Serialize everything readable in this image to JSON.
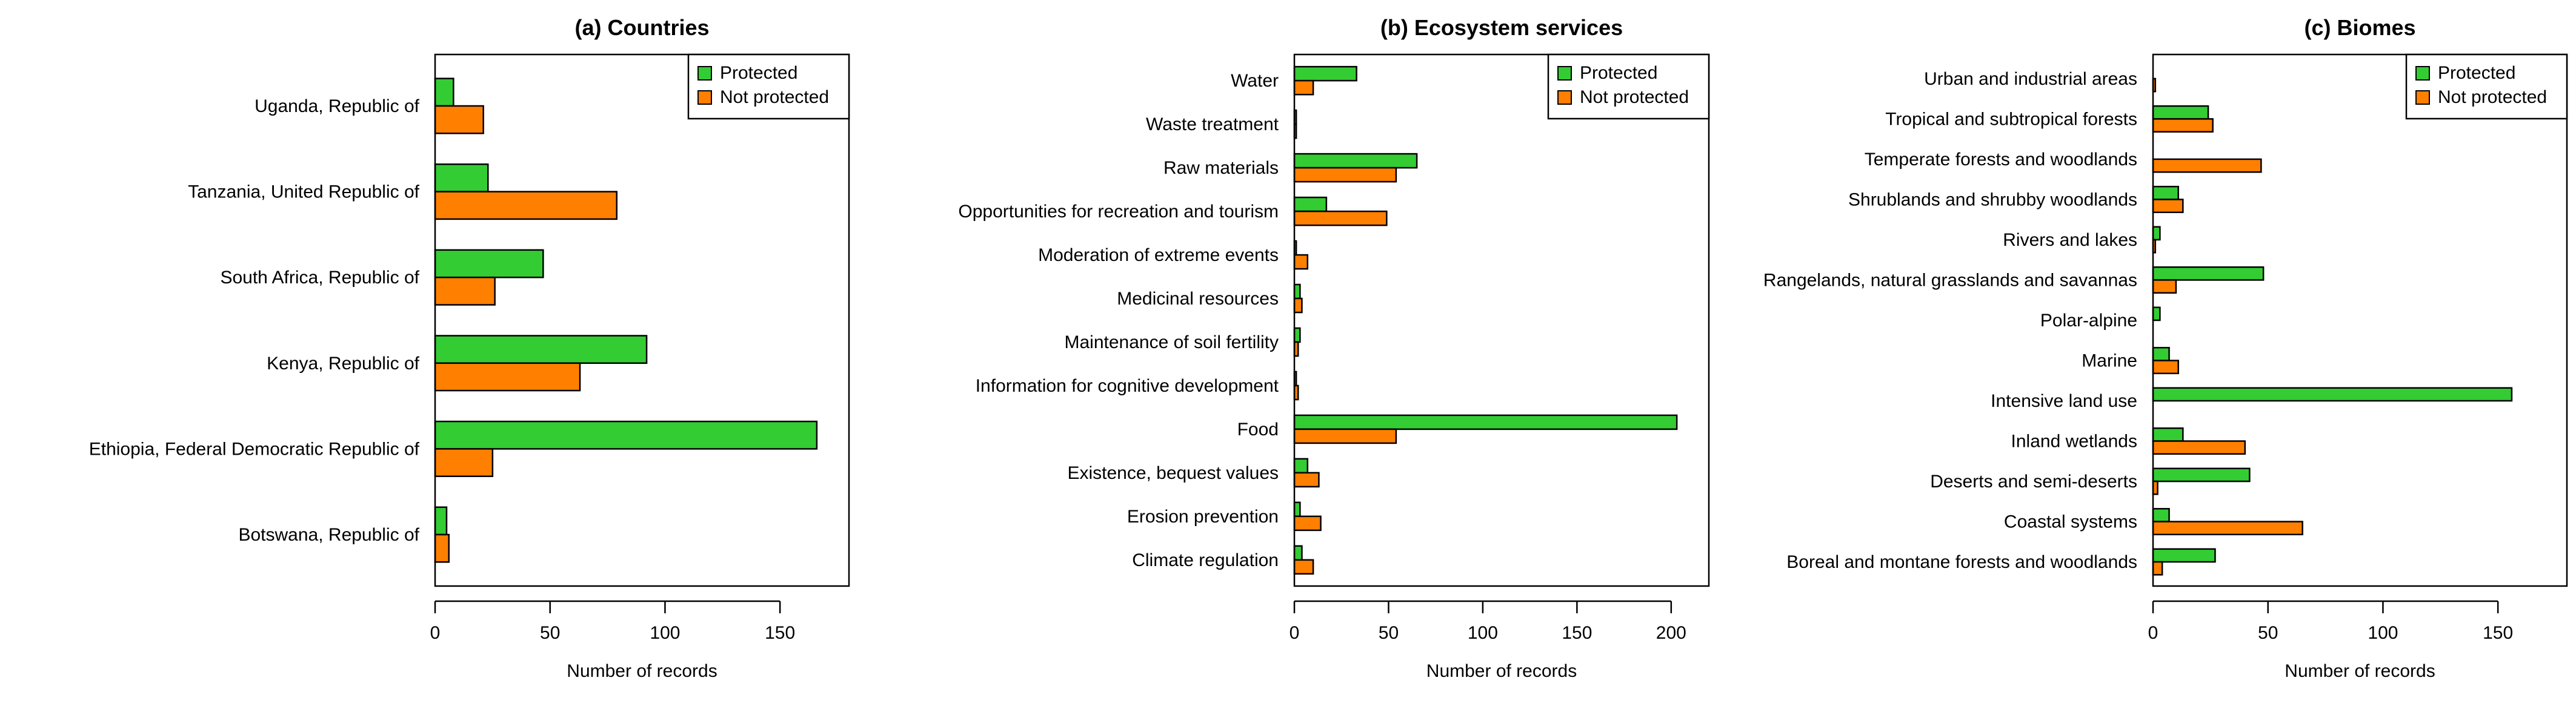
{
  "colors": {
    "protected": "#33cc33",
    "not_protected": "#ff7f00",
    "stroke": "#000000"
  },
  "chart_data": [
    {
      "type": "bar",
      "orientation": "horizontal",
      "title": "(a) Countries",
      "xlabel": "Number of records",
      "xlim": [
        0,
        180
      ],
      "xticks": [
        0,
        50,
        100,
        150
      ],
      "legend": "top-right",
      "grid": false,
      "categories": [
        "Uganda, Republic of",
        "Tanzania, United Republic of",
        "South Africa, Republic of",
        "Kenya, Republic of",
        "Ethiopia, Federal Democratic Republic of",
        "Botswana, Republic of"
      ],
      "series": [
        {
          "name": "Protected",
          "values": [
            8,
            23,
            47,
            92,
            166,
            5
          ]
        },
        {
          "name": "Not protected",
          "values": [
            21,
            79,
            26,
            63,
            25,
            6
          ]
        }
      ]
    },
    {
      "type": "bar",
      "orientation": "horizontal",
      "title": "(b) Ecosystem services",
      "xlabel": "Number of records",
      "xlim": [
        0,
        220
      ],
      "xticks": [
        0,
        50,
        100,
        150,
        200
      ],
      "legend": "top-right",
      "grid": false,
      "categories": [
        "Water",
        "Waste treatment",
        "Raw materials",
        "Opportunities for recreation and tourism",
        "Moderation of extreme events",
        "Medicinal resources",
        "Maintenance of soil fertility",
        "Information for cognitive development",
        "Food",
        "Existence, bequest values",
        "Erosion prevention",
        "Climate regulation"
      ],
      "series": [
        {
          "name": "Protected",
          "values": [
            33,
            1,
            65,
            17,
            1,
            3,
            3,
            1,
            203,
            7,
            3,
            4
          ]
        },
        {
          "name": "Not protected",
          "values": [
            10,
            1,
            54,
            49,
            7,
            4,
            2,
            2,
            54,
            13,
            14,
            10
          ]
        }
      ]
    },
    {
      "type": "bar",
      "orientation": "horizontal",
      "title": "(c) Biomes",
      "xlabel": "Number of records",
      "xlim": [
        0,
        180
      ],
      "xticks": [
        0,
        50,
        100,
        150
      ],
      "legend": "top-right",
      "grid": false,
      "categories": [
        "Urban and industrial areas",
        "Tropical and subtropical forests",
        "Temperate forests and woodlands",
        "Shrublands and shrubby woodlands",
        "Rivers and lakes",
        "Rangelands, natural grasslands and savannas",
        "Polar-alpine",
        "Marine",
        "Intensive land use",
        "Inland wetlands",
        "Deserts and semi-deserts",
        "Coastal systems",
        "Boreal and montane forests and woodlands"
      ],
      "series": [
        {
          "name": "Protected",
          "values": [
            0,
            24,
            0,
            11,
            3,
            48,
            3,
            7,
            156,
            13,
            42,
            7,
            27
          ]
        },
        {
          "name": "Not protected",
          "values": [
            1,
            26,
            47,
            13,
            1,
            10,
            0,
            11,
            0,
            40,
            2,
            65,
            4
          ]
        }
      ]
    }
  ]
}
